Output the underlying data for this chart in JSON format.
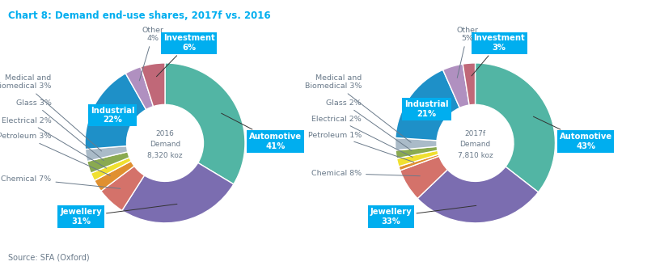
{
  "title": "Chart 8: Demand end-use shares, 2017f vs. 2016",
  "title_color": "#00aeef",
  "source": "Source: SFA (Oxford)",
  "chart1": {
    "center_label": "2016\nDemand\n8,320 koz",
    "segments": [
      {
        "label": "Automotive",
        "pct": 41,
        "color": "#52b5a4"
      },
      {
        "label": "Jewellery",
        "pct": 31,
        "color": "#7b6db0"
      },
      {
        "label": "Chemical",
        "pct": 7,
        "color": "#d4726a"
      },
      {
        "label": "Petroleum",
        "pct": 3,
        "color": "#e09030"
      },
      {
        "label": "Electrical",
        "pct": 2,
        "color": "#f0e030"
      },
      {
        "label": "Glass",
        "pct": 3,
        "color": "#8aaa50"
      },
      {
        "label": "Medical and\nBiomedical",
        "pct": 3,
        "color": "#aabbc8"
      },
      {
        "label": "Industrial",
        "pct": 22,
        "color": "#1e90c8"
      },
      {
        "label": "Other",
        "pct": 4,
        "color": "#b090c0"
      },
      {
        "label": "Investment",
        "pct": 6,
        "color": "#c06878"
      }
    ]
  },
  "chart2": {
    "center_label": "2017f\nDemand\n7,810 koz",
    "segments": [
      {
        "label": "Automotive",
        "pct": 43,
        "color": "#52b5a4"
      },
      {
        "label": "Jewellery",
        "pct": 33,
        "color": "#7b6db0"
      },
      {
        "label": "Chemical",
        "pct": 8,
        "color": "#d4726a"
      },
      {
        "label": "Petroleum",
        "pct": 1,
        "color": "#e09030"
      },
      {
        "label": "Electrical",
        "pct": 2,
        "color": "#f0e030"
      },
      {
        "label": "Glass",
        "pct": 2,
        "color": "#8aaa50"
      },
      {
        "label": "Medical and\nBiomedical",
        "pct": 3,
        "color": "#aabbc8"
      },
      {
        "label": "Industrial",
        "pct": 21,
        "color": "#1e90c8"
      },
      {
        "label": "Other",
        "pct": 5,
        "color": "#b090c0"
      },
      {
        "label": "Investment",
        "pct": 3,
        "color": "#c06878"
      }
    ]
  },
  "box_color": "#00aeef",
  "box_text_color": "#ffffff",
  "annotation_color": "#6a7a8a",
  "background_color": "#ffffff"
}
